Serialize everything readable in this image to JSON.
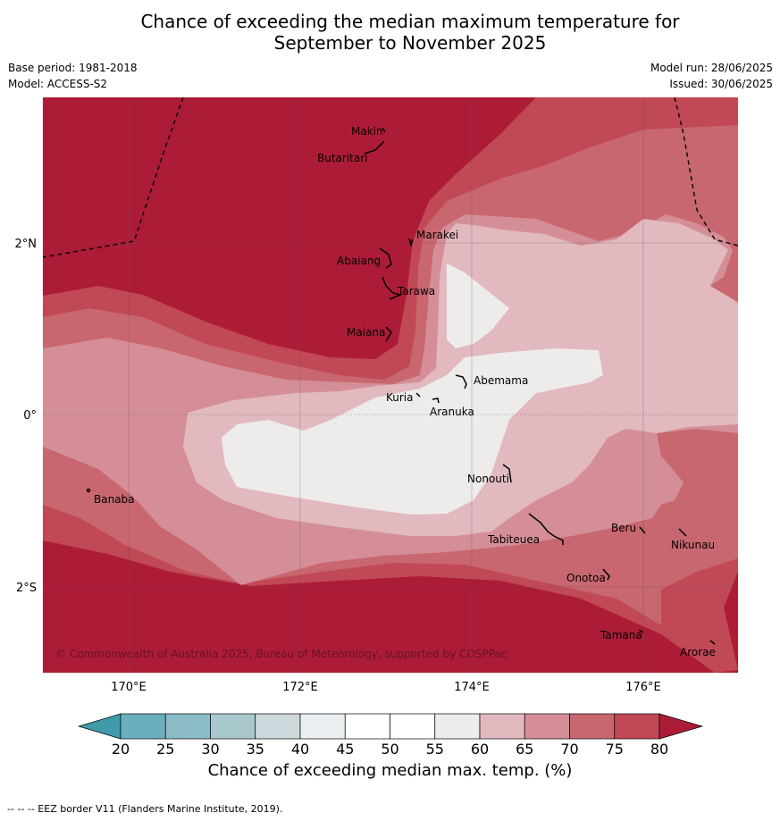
{
  "title_line1": "Chance of exceeding the median maximum temperature for",
  "title_line2": "September to November 2025",
  "base_period": "Base period: 1981-2018",
  "model": "Model: ACCESS-S2",
  "model_run": "Model run: 28/06/2025",
  "issued": "Issued: 30/06/2025",
  "copyright": "© Commonwealth of Australia 2025, Bureau of Meteorology, supported by COSPPac",
  "map": {
    "lon_ticks": [
      "170°E",
      "172°E",
      "174°E",
      "176°E"
    ],
    "lat_ticks": [
      "2°N",
      "0°",
      "2°S"
    ],
    "places": [
      {
        "name": "Makin"
      },
      {
        "name": "Butaritari"
      },
      {
        "name": "Marakei"
      },
      {
        "name": "Abaiang"
      },
      {
        "name": "Tarawa"
      },
      {
        "name": "Maiana"
      },
      {
        "name": "Abemama"
      },
      {
        "name": "Kuria"
      },
      {
        "name": "Aranuka"
      },
      {
        "name": "Nonouti"
      },
      {
        "name": "Banaba"
      },
      {
        "name": "Tabiteuea"
      },
      {
        "name": "Beru"
      },
      {
        "name": "Nikunau"
      },
      {
        "name": "Onotoa"
      },
      {
        "name": "Tamana"
      },
      {
        "name": "Arorae"
      }
    ]
  },
  "colorbar": {
    "title": "Chance of exceeding median max. temp. (%)",
    "tick_labels": [
      "20",
      "25",
      "30",
      "35",
      "40",
      "45",
      "50",
      "55",
      "60",
      "65",
      "70",
      "75",
      "80"
    ],
    "colors": {
      "below20": "#3f9ba9",
      "20-25": "#6aafbd",
      "25-30": "#8cbcc8",
      "30-35": "#a9c8ce",
      "35-40": "#cdd9dc",
      "40-45": "#eaeff1",
      "45-50": "#ffffff",
      "50-55": "#ffffff",
      "55-60": "#eeeceb",
      "60-65": "#e1b9be",
      "65-70": "#d58e97",
      "70-75": "#c8676f",
      "75-80": "#c14855",
      "above80": "#ad1c36"
    }
  },
  "footnote": "--  --  -- EEZ border V11 (Flanders Marine Institute, 2019)."
}
